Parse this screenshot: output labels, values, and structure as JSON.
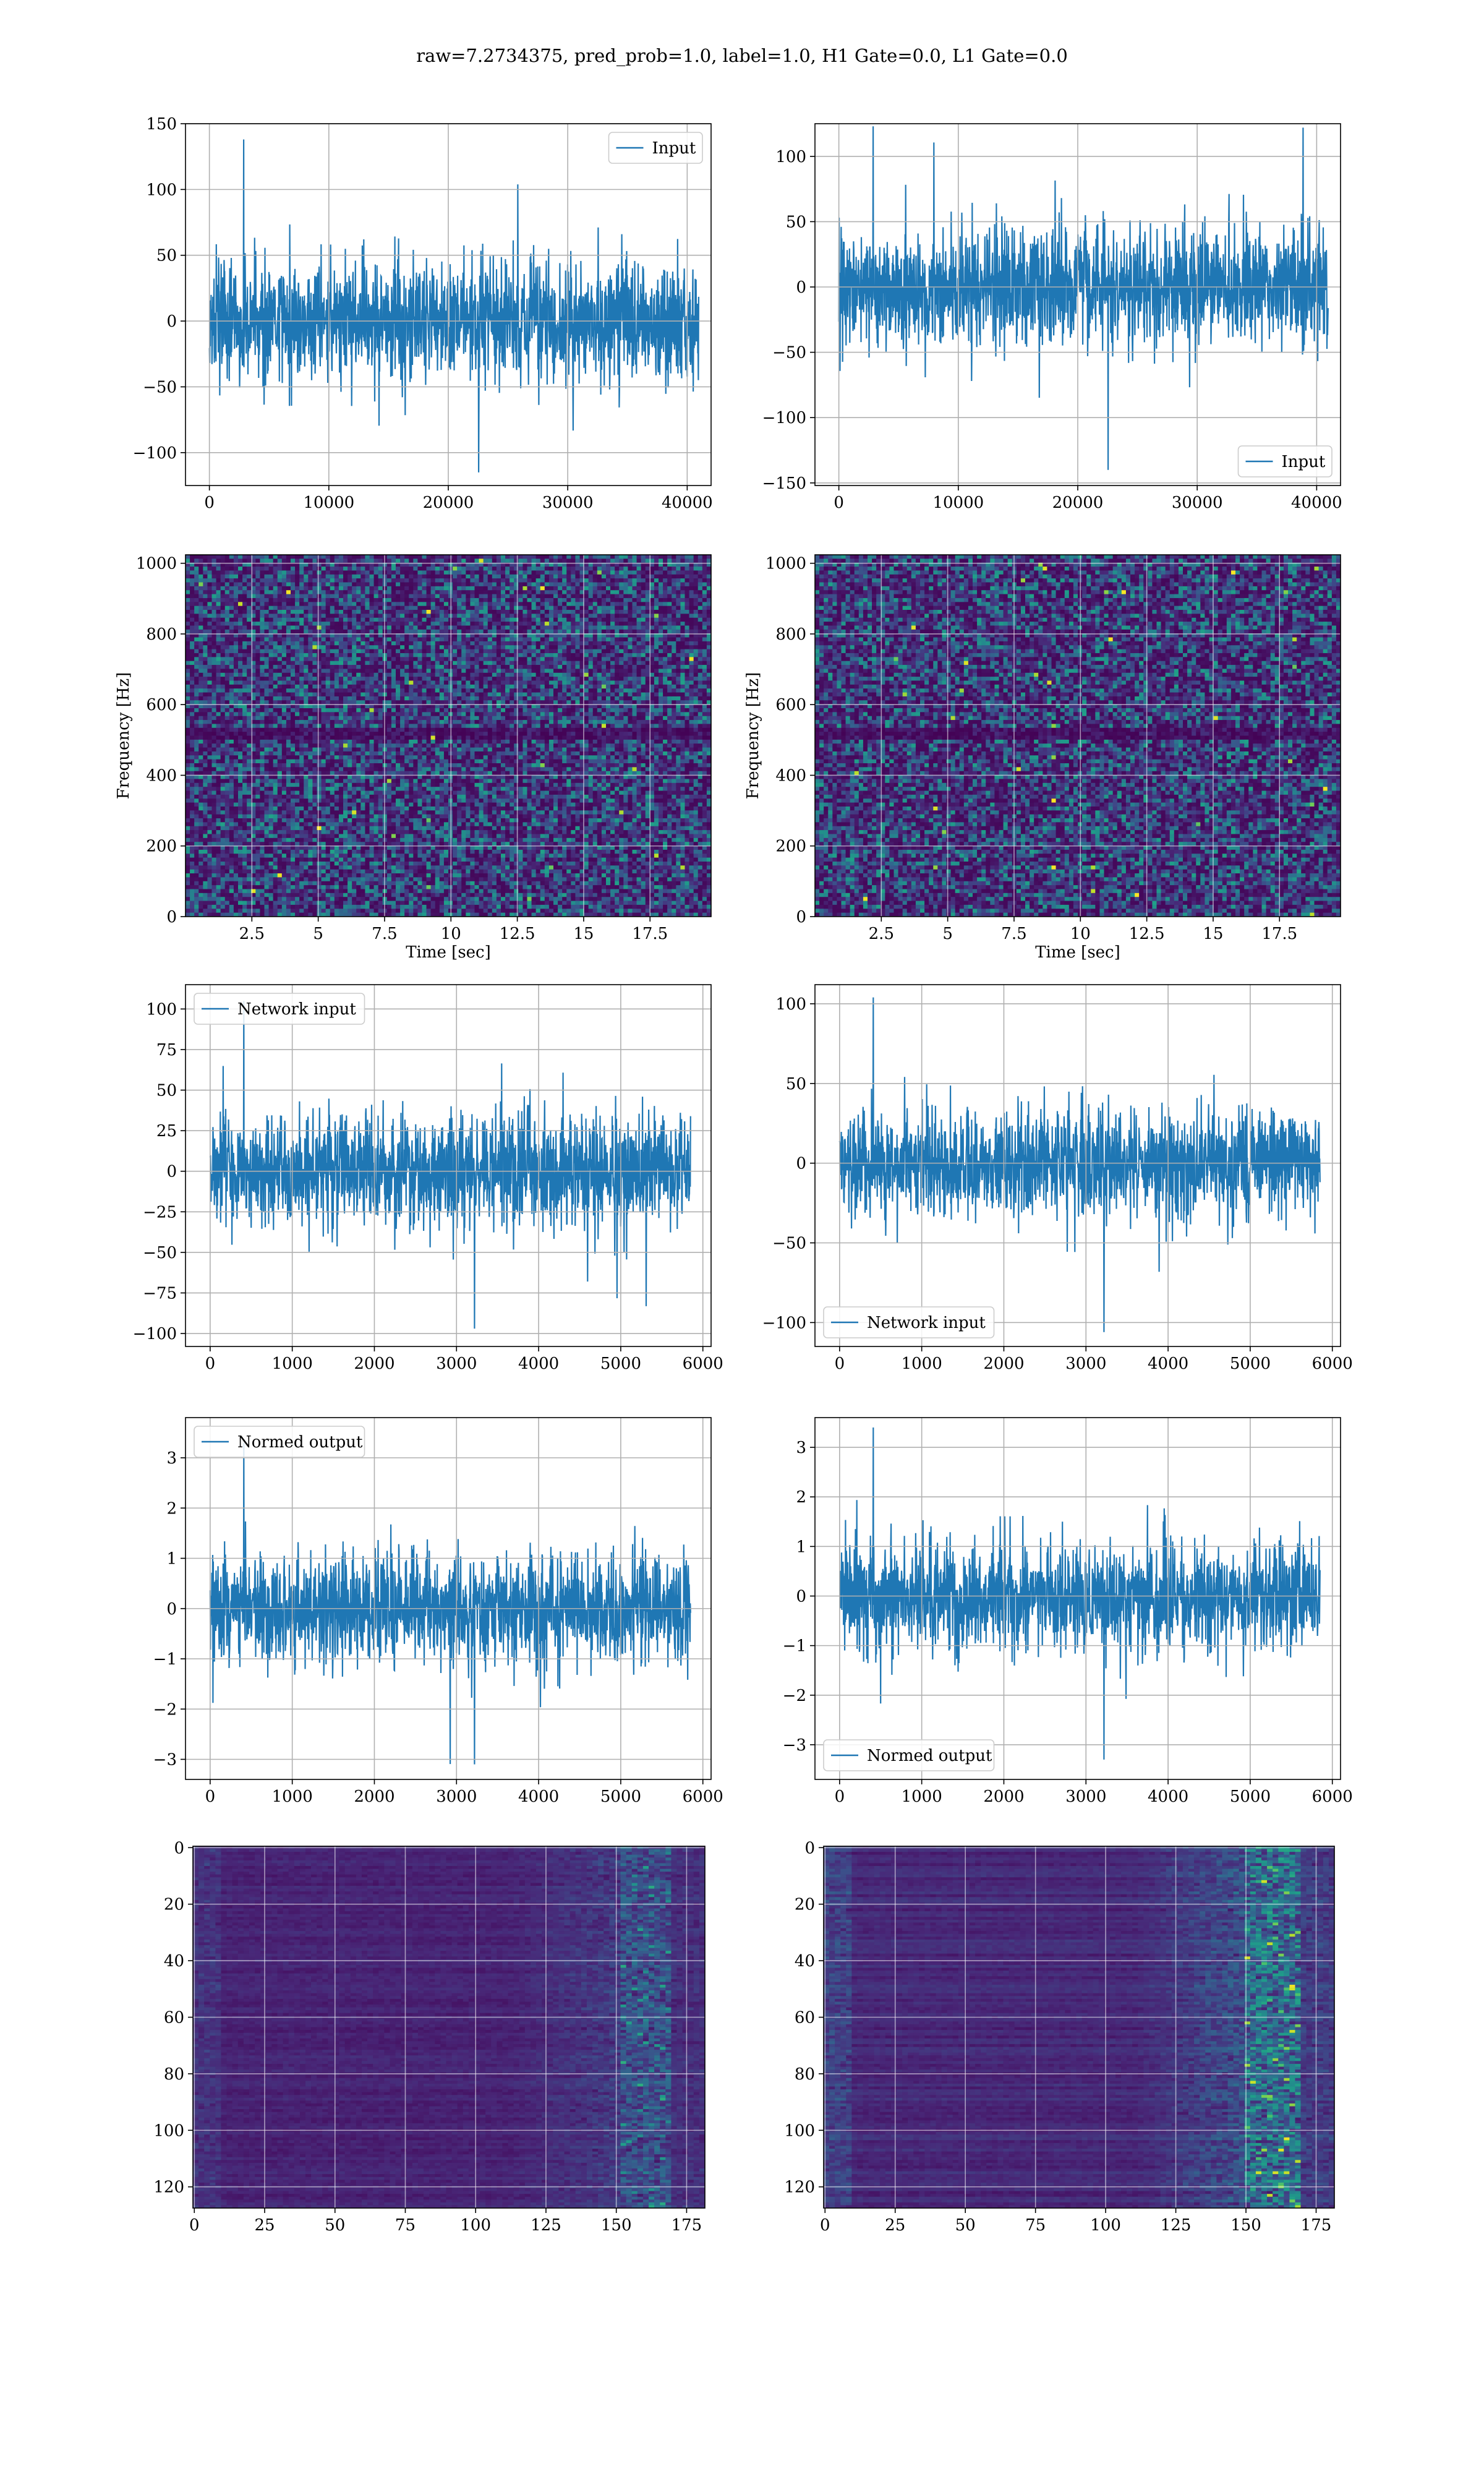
{
  "title": "raw=7.2734375, pred_prob=1.0, label=1.0, H1 Gate=0.0, L1 Gate=0.0",
  "colors": {
    "line": "#1f77b4",
    "grid": "#b0b0b0",
    "viridis_dark": "#440154",
    "viridis_bright": "#fde725"
  },
  "chart_data": [
    {
      "type": "line",
      "panel": "row1-left",
      "series": [
        {
          "name": "Input"
        }
      ],
      "legend": "upper right",
      "grid": true,
      "xlim": [
        -2000,
        42000
      ],
      "ylim": [
        -125,
        150
      ],
      "xticks": [
        0,
        10000,
        20000,
        30000,
        40000
      ],
      "yticks": [
        -100,
        -50,
        0,
        50,
        100,
        150
      ],
      "xlabel": "",
      "ylabel": "",
      "x_extent": [
        0,
        40960
      ],
      "amplitude": 42,
      "y_extremes": [
        -115,
        138
      ]
    },
    {
      "type": "line",
      "panel": "row1-right",
      "series": [
        {
          "name": "Input"
        }
      ],
      "legend": "lower right",
      "grid": true,
      "xlim": [
        -2000,
        42000
      ],
      "ylim": [
        -152,
        125
      ],
      "xticks": [
        0,
        10000,
        20000,
        30000,
        40000
      ],
      "yticks": [
        -150,
        -100,
        -50,
        0,
        50,
        100
      ],
      "xlabel": "",
      "ylabel": "",
      "x_extent": [
        0,
        40960
      ],
      "amplitude": 40,
      "y_extremes": [
        -140,
        123
      ]
    },
    {
      "type": "heatmap",
      "panel": "row2-left",
      "grid": true,
      "xlim": [
        0,
        19.8
      ],
      "ylim": [
        0,
        1024
      ],
      "xticks": [
        2.5,
        5.0,
        7.5,
        10.0,
        12.5,
        15.0,
        17.5
      ],
      "yticks": [
        0,
        200,
        400,
        600,
        800,
        1000
      ],
      "xlabel": "Time [sec]",
      "ylabel": "Frequency [Hz]",
      "colormap": "viridis"
    },
    {
      "type": "heatmap",
      "panel": "row2-right",
      "grid": true,
      "xlim": [
        0,
        19.8
      ],
      "ylim": [
        0,
        1024
      ],
      "xticks": [
        2.5,
        5.0,
        7.5,
        10.0,
        12.5,
        15.0,
        17.5
      ],
      "yticks": [
        0,
        200,
        400,
        600,
        800,
        1000
      ],
      "xlabel": "Time [sec]",
      "ylabel": "Frequency [Hz]",
      "colormap": "viridis"
    },
    {
      "type": "line",
      "panel": "row3-left",
      "series": [
        {
          "name": "Network input"
        }
      ],
      "legend": "upper left",
      "grid": true,
      "xlim": [
        -300,
        6100
      ],
      "ylim": [
        -108,
        115
      ],
      "xticks": [
        0,
        1000,
        2000,
        3000,
        4000,
        5000,
        6000
      ],
      "yticks": [
        -100,
        -75,
        -50,
        -25,
        0,
        25,
        50,
        75,
        100
      ],
      "xlabel": "",
      "ylabel": "",
      "x_extent": [
        0,
        5850
      ],
      "amplitude": 30,
      "y_extremes": [
        -97,
        105
      ]
    },
    {
      "type": "line",
      "panel": "row3-right",
      "series": [
        {
          "name": "Network input"
        }
      ],
      "legend": "lower left",
      "grid": true,
      "xlim": [
        -300,
        6100
      ],
      "ylim": [
        -115,
        112
      ],
      "xticks": [
        0,
        1000,
        2000,
        3000,
        4000,
        5000,
        6000
      ],
      "yticks": [
        -100,
        -50,
        0,
        50,
        100
      ],
      "xlabel": "",
      "ylabel": "",
      "x_extent": [
        0,
        5850
      ],
      "amplitude": 30,
      "y_extremes": [
        -106,
        104
      ]
    },
    {
      "type": "line",
      "panel": "row4-left",
      "series": [
        {
          "name": "Normed output"
        }
      ],
      "legend": "upper left",
      "grid": true,
      "xlim": [
        -300,
        6100
      ],
      "ylim": [
        -3.4,
        3.8
      ],
      "xticks": [
        0,
        1000,
        2000,
        3000,
        4000,
        5000,
        6000
      ],
      "yticks": [
        -3,
        -2,
        -1,
        0,
        1,
        2,
        3
      ],
      "xlabel": "",
      "ylabel": "",
      "x_extent": [
        0,
        5850
      ],
      "amplitude": 0.95,
      "y_extremes": [
        -3.1,
        3.3
      ]
    },
    {
      "type": "line",
      "panel": "row4-right",
      "series": [
        {
          "name": "Normed output"
        }
      ],
      "legend": "lower left",
      "grid": true,
      "xlim": [
        -300,
        6100
      ],
      "ylim": [
        -3.7,
        3.6
      ],
      "xticks": [
        0,
        1000,
        2000,
        3000,
        4000,
        5000,
        6000
      ],
      "yticks": [
        -3,
        -2,
        -1,
        0,
        1,
        2,
        3
      ],
      "xlabel": "",
      "ylabel": "",
      "x_extent": [
        0,
        5850
      ],
      "amplitude": 0.95,
      "y_extremes": [
        -3.3,
        3.4
      ]
    },
    {
      "type": "heatmap",
      "panel": "row5-left",
      "grid": true,
      "xlim": [
        -0.5,
        181.5
      ],
      "ylim": [
        127.5,
        -0.5
      ],
      "xticks": [
        0,
        25,
        50,
        75,
        100,
        125,
        150,
        175
      ],
      "yticks": [
        0,
        20,
        40,
        60,
        80,
        100,
        120
      ],
      "xlabel": "",
      "ylabel": "",
      "colormap": "viridis",
      "feature_band_columns": [
        152,
        168
      ],
      "intensity": 0.6
    },
    {
      "type": "heatmap",
      "panel": "row5-right",
      "grid": true,
      "xlim": [
        -0.5,
        181.5
      ],
      "ylim": [
        127.5,
        -0.5
      ],
      "xticks": [
        0,
        25,
        50,
        75,
        100,
        125,
        150,
        175
      ],
      "yticks": [
        0,
        20,
        40,
        60,
        80,
        100,
        120
      ],
      "xlabel": "",
      "ylabel": "",
      "colormap": "viridis",
      "feature_band_columns": [
        150,
        168
      ],
      "intensity": 1.0
    }
  ]
}
